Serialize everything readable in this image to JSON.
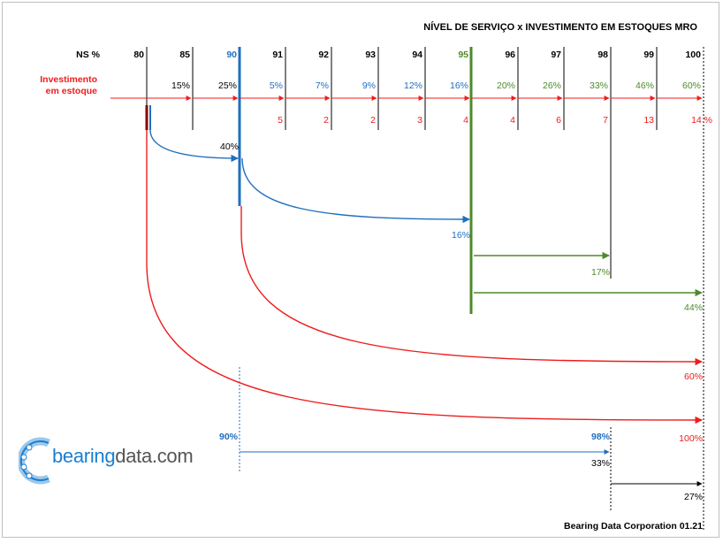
{
  "title": "NÍVEL DE SERVIÇO x INVESTIMENTO EM ESTOQUES MRO",
  "credit": "Bearing Data Corporation 01.21",
  "logo": {
    "prefix": "bearing",
    "suffix": "data.com",
    "prefix_color": "#1a7fd4",
    "suffix_color": "#555555"
  },
  "row_labels": {
    "ns": "NS %",
    "inv_line1": "Investimento",
    "inv_line2": "em estoque"
  },
  "levels": [
    "80",
    "85",
    "90",
    "91",
    "92",
    "93",
    "94",
    "95",
    "96",
    "97",
    "98",
    "99",
    "100"
  ],
  "level_colors": [
    "#000000",
    "#000000",
    "#1f6fbf",
    "#000000",
    "#000000",
    "#000000",
    "#000000",
    "#4e8a2a",
    "#000000",
    "#000000",
    "#000000",
    "#000000",
    "#000000"
  ],
  "cumulative_investment": [
    "",
    "15%",
    "25%",
    "5%",
    "7%",
    "9%",
    "12%",
    "16%",
    "20%",
    "26%",
    "33%",
    "46%",
    "60%"
  ],
  "cumulative_colors": [
    "#000000",
    "#000000",
    "#000000",
    "#1f6fbf",
    "#1f6fbf",
    "#1f6fbf",
    "#1f6fbf",
    "#1f6fbf",
    "#4e8a2a",
    "#4e8a2a",
    "#4e8a2a",
    "#4e8a2a",
    "#4e8a2a"
  ],
  "step_increments": [
    "",
    "",
    "",
    "5",
    "2",
    "2",
    "3",
    "4",
    "4",
    "6",
    "7",
    "13",
    "14 %"
  ],
  "arcs": [
    {
      "from": "80",
      "to": "90",
      "label": "40%",
      "color": "#1f6fbf"
    },
    {
      "from": "90",
      "to": "95",
      "label": "16%",
      "color": "#1f6fbf"
    },
    {
      "from": "95",
      "to": "98",
      "label": "17%",
      "color": "#4e8a2a"
    },
    {
      "from": "95",
      "to": "100",
      "label": "44%",
      "color": "#4e8a2a"
    },
    {
      "from": "90",
      "to": "100",
      "label": "60%",
      "color": "#ee1c1c"
    },
    {
      "from": "80",
      "to": "100",
      "label": "100%",
      "color": "#ee1c1c"
    }
  ],
  "bottom_compare": {
    "start_label": "90%",
    "end_label": "98%",
    "span_label": "33%",
    "tail_label": "27%"
  },
  "colors": {
    "red": "#ee1c1c",
    "blue": "#1f6fbf",
    "green": "#4e8a2a",
    "black": "#000000"
  }
}
